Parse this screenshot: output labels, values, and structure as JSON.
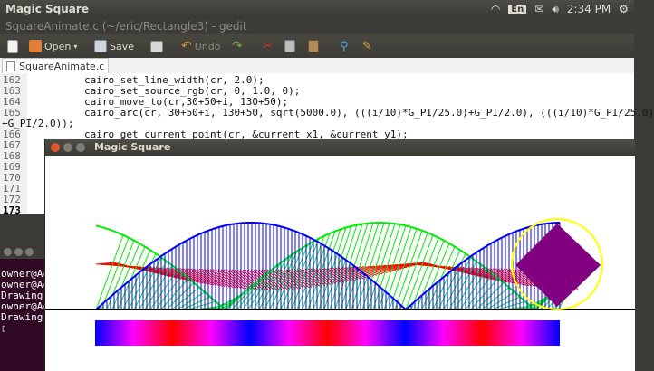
{
  "top_panel": {
    "app_name": "Magic Square",
    "keyboard_layout": "En",
    "clock": "2:34 PM",
    "icons": [
      "wifi-icon",
      "keyboard-icon",
      "mail-icon",
      "volume-icon",
      "power-icon"
    ]
  },
  "gedit": {
    "window_title": "SquareAnimate.c (~/eric/Rectangle3) - gedit",
    "toolbar": {
      "new_label": "",
      "open_label": "Open",
      "save_label": "Save",
      "print_label": "",
      "undo_label": "Undo"
    },
    "tab_label": "SquareAnimate.c",
    "lines": [
      {
        "n": "162",
        "text": "        cairo_set_line_width(cr, 2.0);"
      },
      {
        "n": "163",
        "text": "        cairo_set_source_rgb(cr, 0, 1.0, 0);"
      },
      {
        "n": "164",
        "text": "        cairo_move_to(cr,30+50+i, 130+50);"
      },
      {
        "n": "165",
        "text": "        cairo_arc(cr, 30+50+i, 130+50, sqrt(5000.0), (((i/10)*G_PI/25.0)+G_PI/2.0), (((i/10)*G_PI/25.0)"
      },
      {
        "n": "",
        "text": "+G_PI/2.0));"
      },
      {
        "n": "166",
        "text": "        cairo_get_current_point(cr, &current_x1, &current_y1);"
      },
      {
        "n": "167",
        "text": ""
      },
      {
        "n": "168",
        "text": ""
      },
      {
        "n": "169",
        "text": ""
      },
      {
        "n": "170",
        "text": ""
      },
      {
        "n": "171",
        "text": ""
      },
      {
        "n": "172",
        "text": ""
      },
      {
        "n": "173",
        "text": ""
      }
    ]
  },
  "terminal": {
    "lines": [
      "owner@Ac",
      "owner@Ac",
      "Drawing",
      "owner@Ac",
      "Drawing",
      "▯"
    ]
  },
  "magic_square": {
    "window_title": "Magic Square"
  }
}
